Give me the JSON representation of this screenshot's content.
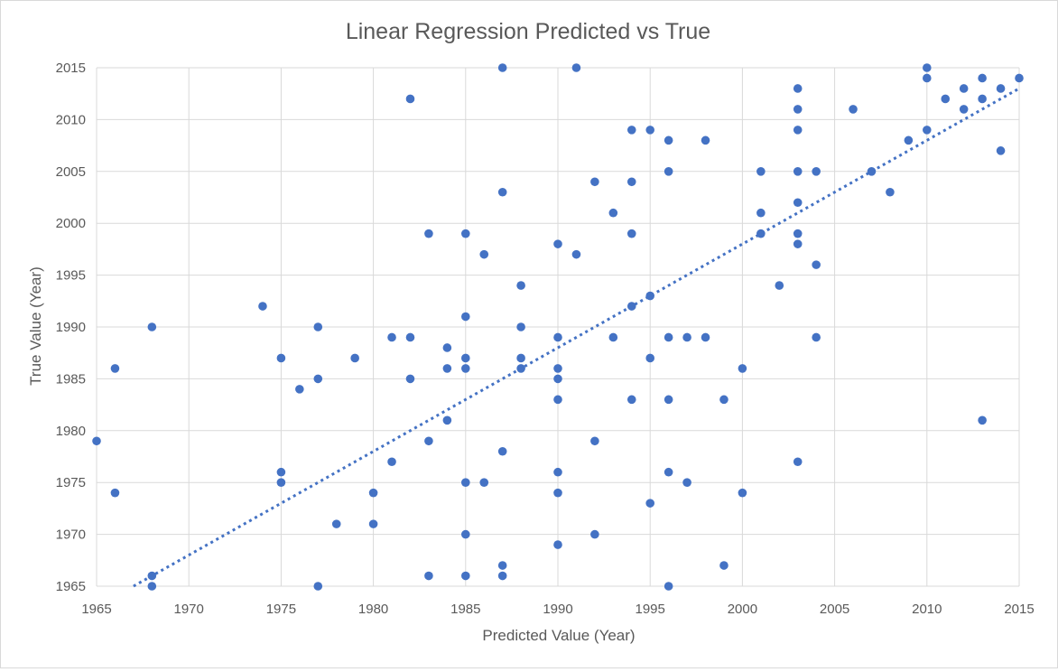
{
  "chart_data": {
    "type": "scatter",
    "title": "Linear Regression Predicted vs True",
    "xlabel": "Predicted Value (Year)",
    "ylabel": "True Value (Year)",
    "xlim": [
      1965,
      2015
    ],
    "ylim": [
      1965,
      2015
    ],
    "xticks": [
      "1965",
      "1970",
      "1975",
      "1980",
      "1985",
      "1990",
      "1995",
      "2000",
      "2005",
      "2010",
      "2015"
    ],
    "yticks": [
      "1965",
      "1970",
      "1975",
      "1980",
      "1985",
      "1990",
      "1995",
      "2000",
      "2005",
      "2010",
      "2015"
    ],
    "grid": true,
    "legend": "none",
    "marker_color": "#4472c4",
    "trendline": {
      "type": "linear",
      "style": "dotted",
      "color": "#4472c4",
      "from": [
        1967,
        1965
      ],
      "to": [
        2015,
        2013
      ]
    },
    "points": [
      {
        "x": 1965,
        "y": 1979
      },
      {
        "x": 1966,
        "y": 1986
      },
      {
        "x": 1966,
        "y": 1974
      },
      {
        "x": 1968,
        "y": 1990
      },
      {
        "x": 1968,
        "y": 1966
      },
      {
        "x": 1968,
        "y": 1965
      },
      {
        "x": 1974,
        "y": 1992
      },
      {
        "x": 1975,
        "y": 1987
      },
      {
        "x": 1975,
        "y": 1976
      },
      {
        "x": 1975,
        "y": 1975
      },
      {
        "x": 1976,
        "y": 1984
      },
      {
        "x": 1977,
        "y": 1990
      },
      {
        "x": 1977,
        "y": 1985
      },
      {
        "x": 1977,
        "y": 1965
      },
      {
        "x": 1978,
        "y": 1971
      },
      {
        "x": 1979,
        "y": 1987
      },
      {
        "x": 1980,
        "y": 1974
      },
      {
        "x": 1980,
        "y": 1971
      },
      {
        "x": 1981,
        "y": 1989
      },
      {
        "x": 1981,
        "y": 1977
      },
      {
        "x": 1982,
        "y": 2012
      },
      {
        "x": 1982,
        "y": 1989
      },
      {
        "x": 1982,
        "y": 1985
      },
      {
        "x": 1983,
        "y": 1999
      },
      {
        "x": 1983,
        "y": 1979
      },
      {
        "x": 1983,
        "y": 1966
      },
      {
        "x": 1984,
        "y": 1988
      },
      {
        "x": 1984,
        "y": 1986
      },
      {
        "x": 1984,
        "y": 1981
      },
      {
        "x": 1985,
        "y": 1999
      },
      {
        "x": 1985,
        "y": 1991
      },
      {
        "x": 1985,
        "y": 1987
      },
      {
        "x": 1985,
        "y": 1986
      },
      {
        "x": 1985,
        "y": 1975
      },
      {
        "x": 1985,
        "y": 1970
      },
      {
        "x": 1985,
        "y": 1966
      },
      {
        "x": 1986,
        "y": 1997
      },
      {
        "x": 1986,
        "y": 1975
      },
      {
        "x": 1987,
        "y": 2015
      },
      {
        "x": 1987,
        "y": 2003
      },
      {
        "x": 1987,
        "y": 1978
      },
      {
        "x": 1987,
        "y": 1967
      },
      {
        "x": 1987,
        "y": 1966
      },
      {
        "x": 1988,
        "y": 1994
      },
      {
        "x": 1988,
        "y": 1990
      },
      {
        "x": 1988,
        "y": 1987
      },
      {
        "x": 1988,
        "y": 1986
      },
      {
        "x": 1990,
        "y": 1998
      },
      {
        "x": 1990,
        "y": 1989
      },
      {
        "x": 1990,
        "y": 1986
      },
      {
        "x": 1990,
        "y": 1985
      },
      {
        "x": 1990,
        "y": 1983
      },
      {
        "x": 1990,
        "y": 1976
      },
      {
        "x": 1990,
        "y": 1974
      },
      {
        "x": 1990,
        "y": 1969
      },
      {
        "x": 1991,
        "y": 2015
      },
      {
        "x": 1991,
        "y": 1997
      },
      {
        "x": 1992,
        "y": 2004
      },
      {
        "x": 1992,
        "y": 1979
      },
      {
        "x": 1992,
        "y": 1970
      },
      {
        "x": 1993,
        "y": 2001
      },
      {
        "x": 1993,
        "y": 1989
      },
      {
        "x": 1994,
        "y": 2009
      },
      {
        "x": 1994,
        "y": 2004
      },
      {
        "x": 1994,
        "y": 1999
      },
      {
        "x": 1994,
        "y": 1992
      },
      {
        "x": 1994,
        "y": 1983
      },
      {
        "x": 1995,
        "y": 2009
      },
      {
        "x": 1995,
        "y": 1993
      },
      {
        "x": 1995,
        "y": 1987
      },
      {
        "x": 1995,
        "y": 1973
      },
      {
        "x": 1996,
        "y": 2008
      },
      {
        "x": 1996,
        "y": 2005
      },
      {
        "x": 1996,
        "y": 1989
      },
      {
        "x": 1996,
        "y": 1983
      },
      {
        "x": 1996,
        "y": 1976
      },
      {
        "x": 1996,
        "y": 1965
      },
      {
        "x": 1997,
        "y": 1989
      },
      {
        "x": 1997,
        "y": 1975
      },
      {
        "x": 1998,
        "y": 2008
      },
      {
        "x": 1998,
        "y": 1989
      },
      {
        "x": 1999,
        "y": 1983
      },
      {
        "x": 1999,
        "y": 1967
      },
      {
        "x": 2000,
        "y": 1986
      },
      {
        "x": 2000,
        "y": 1974
      },
      {
        "x": 2001,
        "y": 2005
      },
      {
        "x": 2001,
        "y": 2001
      },
      {
        "x": 2001,
        "y": 1999
      },
      {
        "x": 2002,
        "y": 1994
      },
      {
        "x": 2003,
        "y": 2013
      },
      {
        "x": 2003,
        "y": 2011
      },
      {
        "x": 2003,
        "y": 2009
      },
      {
        "x": 2003,
        "y": 2005
      },
      {
        "x": 2003,
        "y": 2002
      },
      {
        "x": 2003,
        "y": 1999
      },
      {
        "x": 2003,
        "y": 1998
      },
      {
        "x": 2003,
        "y": 1977
      },
      {
        "x": 2004,
        "y": 2005
      },
      {
        "x": 2004,
        "y": 1996
      },
      {
        "x": 2004,
        "y": 1989
      },
      {
        "x": 2006,
        "y": 2011
      },
      {
        "x": 2007,
        "y": 2005
      },
      {
        "x": 2008,
        "y": 2003
      },
      {
        "x": 2009,
        "y": 2008
      },
      {
        "x": 2010,
        "y": 2015
      },
      {
        "x": 2010,
        "y": 2014
      },
      {
        "x": 2010,
        "y": 2009
      },
      {
        "x": 2011,
        "y": 2012
      },
      {
        "x": 2012,
        "y": 2013
      },
      {
        "x": 2012,
        "y": 2011
      },
      {
        "x": 2013,
        "y": 2014
      },
      {
        "x": 2013,
        "y": 2012
      },
      {
        "x": 2013,
        "y": 1981
      },
      {
        "x": 2014,
        "y": 2013
      },
      {
        "x": 2014,
        "y": 2007
      },
      {
        "x": 2015,
        "y": 2014
      }
    ]
  }
}
